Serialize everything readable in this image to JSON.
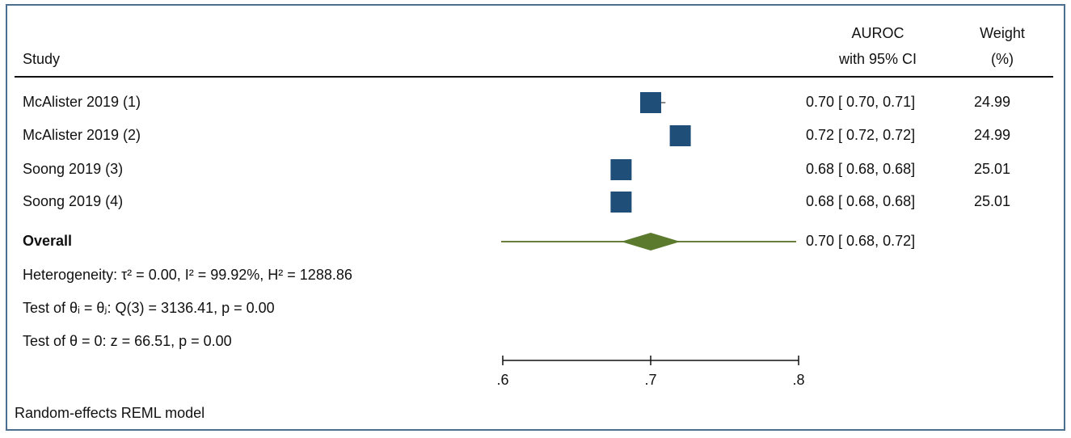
{
  "chart_data": {
    "type": "forest",
    "header": {
      "study": "Study",
      "effect": [
        "AUROC",
        "with 95% CI"
      ],
      "weight": [
        "Weight",
        "(%)"
      ]
    },
    "categories": [
      "McAlister 2019 (1)",
      "McAlister 2019 (2)",
      "Soong 2019 (3)",
      "Soong 2019 (4)"
    ],
    "values": [
      0.7,
      0.72,
      0.68,
      0.68
    ],
    "lower": [
      0.7,
      0.72,
      0.68,
      0.68
    ],
    "upper": [
      0.71,
      0.72,
      0.68,
      0.68
    ],
    "value_labels": [
      "0.70 [ 0.70,  0.71]",
      "0.72 [ 0.72,  0.72]",
      "0.68 [ 0.68,  0.68]",
      "0.68 [ 0.68,  0.68]"
    ],
    "weights": [
      24.99,
      24.99,
      25.01,
      25.01
    ],
    "color": "#1f4e79",
    "overall": {
      "name": "Overall",
      "value": 0.7,
      "lower": 0.68,
      "upper": 0.72,
      "value_label": "0.70 [ 0.68,  0.72]",
      "color": "#5b7a2e"
    },
    "notes": [
      "Heterogeneity: τ² = 0.00, I² = 99.92%, H² = 1288.86",
      "Test of θᵢ = θⱼ: Q(3) = 3136.41, p = 0.00",
      "Test of θ = 0: z = 66.51, p = 0.00"
    ],
    "xlim": [
      0.6,
      0.8
    ],
    "xticks": [
      {
        "value": 0.6,
        "label": ".6"
      },
      {
        "value": 0.7,
        "label": ".7"
      },
      {
        "value": 0.8,
        "label": ".8"
      }
    ],
    "footer": "Random-effects REML model"
  }
}
